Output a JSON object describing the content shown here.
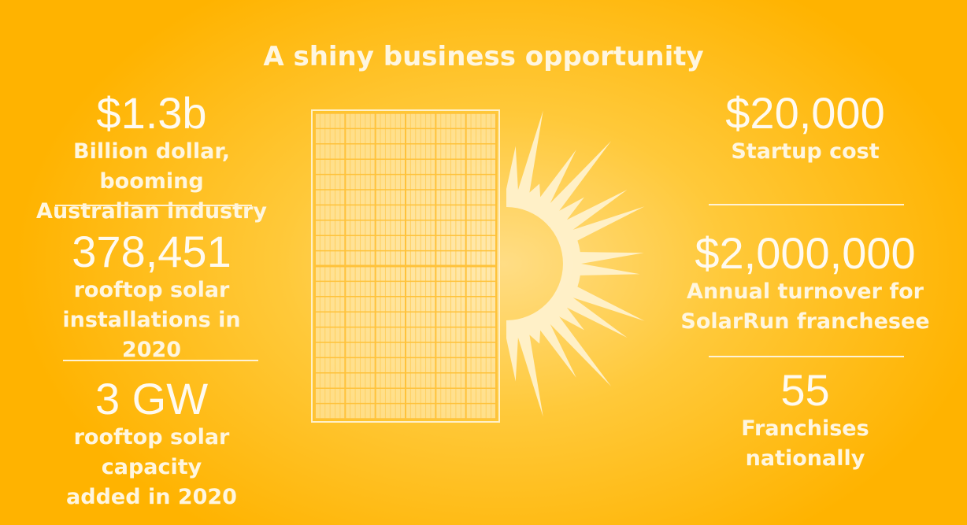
{
  "title": "A shiny business opportunity",
  "left_stats": [
    {
      "value": "$1.3b",
      "label_lines": [
        "Billion dollar, booming",
        "Australian industry"
      ]
    },
    {
      "value": "378,451",
      "label_lines": [
        "rooftop solar",
        "installations in 2020"
      ]
    },
    {
      "value": "3 GW",
      "label_lines": [
        "rooftop solar capacity",
        "added in 2020"
      ]
    }
  ],
  "right_stats": [
    {
      "value": "$20,000",
      "label_lines": [
        "Startup cost"
      ]
    },
    {
      "value": "$2,000,000",
      "label_lines": [
        "Annual turnover for",
        "SolarRun franchesee"
      ]
    },
    {
      "value": "55",
      "label_lines": [
        "Franchises",
        "nationally"
      ]
    }
  ],
  "illustration": {
    "left": "solar-panel-icon",
    "right": "half-sun-icon"
  },
  "colors": {
    "background_edge": "#ffb300",
    "background_center": "#ffdd85",
    "text": "#fff6e0"
  }
}
